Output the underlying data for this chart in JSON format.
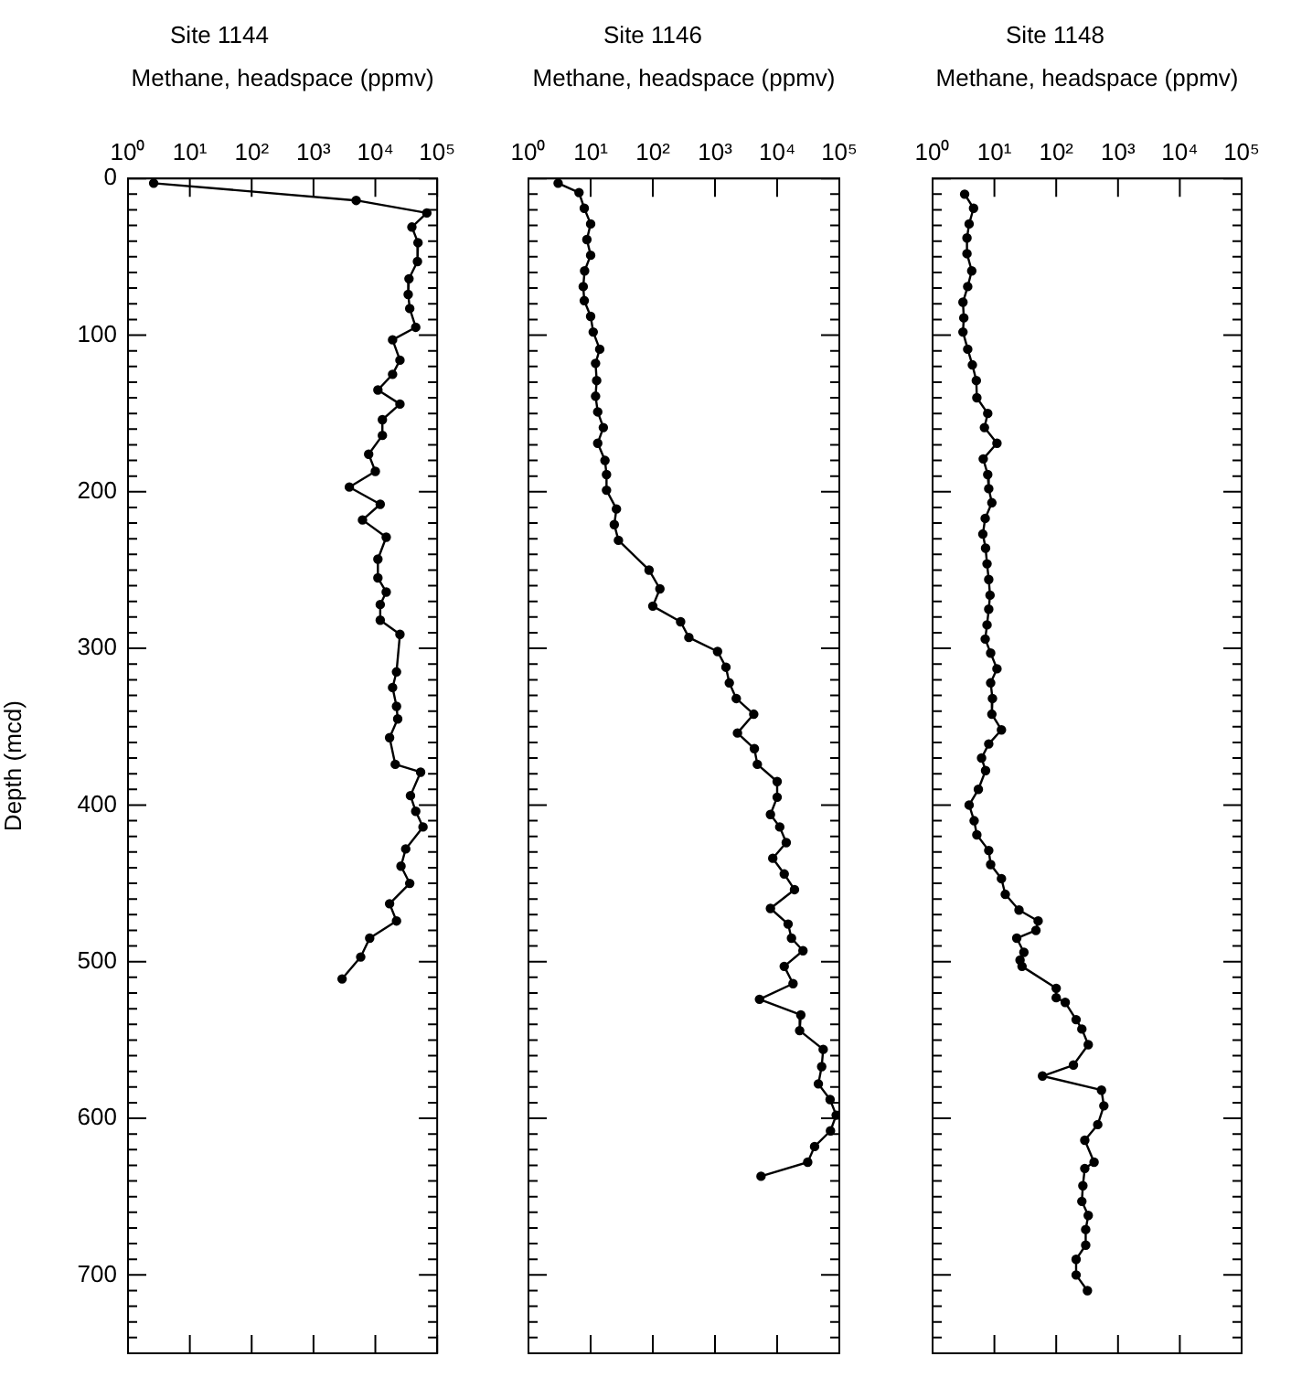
{
  "chart_data": [
    {
      "type": "line",
      "title": "Site 1144",
      "xlabel": "Methane, headspace (ppmv)",
      "ylabel": "Depth (mcd)",
      "log": "x",
      "grid": false,
      "legend": false,
      "marker": "circle",
      "xlim": [
        1,
        100000
      ],
      "xticks": [
        {
          "value": 1,
          "label": "10⁰"
        },
        {
          "value": 10,
          "label": "10¹"
        },
        {
          "value": 100,
          "label": "10²"
        },
        {
          "value": 1000,
          "label": "10³"
        },
        {
          "value": 10000,
          "label": "10⁴"
        },
        {
          "value": 100000,
          "label": "10⁵"
        }
      ],
      "ylim": [
        750,
        0
      ],
      "yticks": [
        0,
        {
          "value": 10,
          "label": null
        },
        {
          "value": 20,
          "label": null
        },
        {
          "value": 30,
          "label": null
        },
        {
          "value": 40,
          "label": null
        },
        {
          "value": 50,
          "label": null
        },
        {
          "value": 60,
          "label": null
        },
        {
          "value": 70,
          "label": null
        },
        {
          "value": 80,
          "label": null
        },
        {
          "value": 90,
          "label": null
        },
        100,
        {
          "value": 110,
          "label": null
        },
        {
          "value": 120,
          "label": null
        },
        {
          "value": 130,
          "label": null
        },
        {
          "value": 140,
          "label": null
        },
        {
          "value": 150,
          "label": null
        },
        {
          "value": 160,
          "label": null
        },
        {
          "value": 170,
          "label": null
        },
        {
          "value": 180,
          "label": null
        },
        {
          "value": 190,
          "label": null
        },
        200,
        {
          "value": 210,
          "label": null
        },
        {
          "value": 220,
          "label": null
        },
        {
          "value": 230,
          "label": null
        },
        {
          "value": 240,
          "label": null
        },
        {
          "value": 250,
          "label": null
        },
        {
          "value": 260,
          "label": null
        },
        {
          "value": 270,
          "label": null
        },
        {
          "value": 280,
          "label": null
        },
        {
          "value": 290,
          "label": null
        },
        300,
        {
          "value": 310,
          "label": null
        },
        {
          "value": 320,
          "label": null
        },
        {
          "value": 330,
          "label": null
        },
        {
          "value": 340,
          "label": null
        },
        {
          "value": 350,
          "label": null
        },
        {
          "value": 360,
          "label": null
        },
        {
          "value": 370,
          "label": null
        },
        {
          "value": 380,
          "label": null
        },
        {
          "value": 390,
          "label": null
        },
        400,
        {
          "value": 410,
          "label": null
        },
        {
          "value": 420,
          "label": null
        },
        {
          "value": 430,
          "label": null
        },
        {
          "value": 440,
          "label": null
        },
        {
          "value": 450,
          "label": null
        },
        {
          "value": 460,
          "label": null
        },
        {
          "value": 470,
          "label": null
        },
        {
          "value": 480,
          "label": null
        },
        {
          "value": 490,
          "label": null
        },
        500,
        {
          "value": 510,
          "label": null
        },
        {
          "value": 520,
          "label": null
        },
        {
          "value": 530,
          "label": null
        },
        {
          "value": 540,
          "label": null
        },
        {
          "value": 550,
          "label": null
        },
        {
          "value": 560,
          "label": null
        },
        {
          "value": 570,
          "label": null
        },
        {
          "value": 580,
          "label": null
        },
        {
          "value": 590,
          "label": null
        },
        600,
        {
          "value": 610,
          "label": null
        },
        {
          "value": 620,
          "label": null
        },
        {
          "value": 630,
          "label": null
        },
        {
          "value": 640,
          "label": null
        },
        {
          "value": 650,
          "label": null
        },
        {
          "value": 660,
          "label": null
        },
        {
          "value": 670,
          "label": null
        },
        {
          "value": 680,
          "label": null
        },
        {
          "value": 690,
          "label": null
        },
        700,
        {
          "value": 710,
          "label": null
        },
        {
          "value": 720,
          "label": null
        },
        {
          "value": 730,
          "label": null
        },
        {
          "value": 740,
          "label": null
        },
        {
          "value": 750,
          "label": null
        }
      ],
      "series": [
        {
          "color": "#000000",
          "x": [
            2.6,
            4900,
            68000,
            39000,
            49000,
            48000,
            35000,
            34000,
            36000,
            45000,
            19000,
            25000,
            19000,
            11000,
            25000,
            13000,
            13000,
            7800,
            10000,
            3800,
            12000,
            6200,
            15000,
            11000,
            11000,
            15000,
            12000,
            12000,
            25000,
            22000,
            19000,
            22000,
            23000,
            17000,
            21000,
            54000,
            37000,
            45000,
            59000,
            31000,
            26000,
            36000,
            17000,
            22000,
            8100,
            5800,
            2900
          ],
          "values": [
            3,
            14,
            22,
            31,
            41,
            53,
            64,
            74,
            83,
            95,
            103,
            116,
            125,
            135,
            144,
            154,
            164,
            176,
            187,
            197,
            208,
            218,
            229,
            243,
            255,
            264,
            272,
            282,
            291,
            315,
            325,
            337,
            345,
            357,
            374,
            379,
            394,
            404,
            414,
            428,
            439,
            450,
            463,
            474,
            485,
            497,
            511
          ]
        }
      ]
    },
    {
      "type": "line",
      "title": "Site 1146",
      "xlabel": "Methane, headspace (ppmv)",
      "log": "x",
      "grid": false,
      "legend": false,
      "marker": "circle",
      "tick_labels": "x",
      "xlim": [
        1,
        100000
      ],
      "xticks": [
        {
          "value": 1,
          "label": "10⁰"
        },
        {
          "value": 10,
          "label": "10¹"
        },
        {
          "value": 100,
          "label": "10²"
        },
        {
          "value": 1000,
          "label": "10³"
        },
        {
          "value": 10000,
          "label": "10⁴"
        },
        {
          "value": 100000,
          "label": "10⁵"
        }
      ],
      "ylim": [
        750,
        0
      ],
      "yticks": [
        0,
        {
          "value": 10,
          "label": null
        },
        {
          "value": 20,
          "label": null
        },
        {
          "value": 30,
          "label": null
        },
        {
          "value": 40,
          "label": null
        },
        {
          "value": 50,
          "label": null
        },
        {
          "value": 60,
          "label": null
        },
        {
          "value": 70,
          "label": null
        },
        {
          "value": 80,
          "label": null
        },
        {
          "value": 90,
          "label": null
        },
        100,
        {
          "value": 110,
          "label": null
        },
        {
          "value": 120,
          "label": null
        },
        {
          "value": 130,
          "label": null
        },
        {
          "value": 140,
          "label": null
        },
        {
          "value": 150,
          "label": null
        },
        {
          "value": 160,
          "label": null
        },
        {
          "value": 170,
          "label": null
        },
        {
          "value": 180,
          "label": null
        },
        {
          "value": 190,
          "label": null
        },
        200,
        {
          "value": 210,
          "label": null
        },
        {
          "value": 220,
          "label": null
        },
        {
          "value": 230,
          "label": null
        },
        {
          "value": 240,
          "label": null
        },
        {
          "value": 250,
          "label": null
        },
        {
          "value": 260,
          "label": null
        },
        {
          "value": 270,
          "label": null
        },
        {
          "value": 280,
          "label": null
        },
        {
          "value": 290,
          "label": null
        },
        300,
        {
          "value": 310,
          "label": null
        },
        {
          "value": 320,
          "label": null
        },
        {
          "value": 330,
          "label": null
        },
        {
          "value": 340,
          "label": null
        },
        {
          "value": 350,
          "label": null
        },
        {
          "value": 360,
          "label": null
        },
        {
          "value": 370,
          "label": null
        },
        {
          "value": 380,
          "label": null
        },
        {
          "value": 390,
          "label": null
        },
        400,
        {
          "value": 410,
          "label": null
        },
        {
          "value": 420,
          "label": null
        },
        {
          "value": 430,
          "label": null
        },
        {
          "value": 440,
          "label": null
        },
        {
          "value": 450,
          "label": null
        },
        {
          "value": 460,
          "label": null
        },
        {
          "value": 470,
          "label": null
        },
        {
          "value": 480,
          "label": null
        },
        {
          "value": 490,
          "label": null
        },
        500,
        {
          "value": 510,
          "label": null
        },
        {
          "value": 520,
          "label": null
        },
        {
          "value": 530,
          "label": null
        },
        {
          "value": 540,
          "label": null
        },
        {
          "value": 550,
          "label": null
        },
        {
          "value": 560,
          "label": null
        },
        {
          "value": 570,
          "label": null
        },
        {
          "value": 580,
          "label": null
        },
        {
          "value": 590,
          "label": null
        },
        600,
        {
          "value": 610,
          "label": null
        },
        {
          "value": 620,
          "label": null
        },
        {
          "value": 630,
          "label": null
        },
        {
          "value": 640,
          "label": null
        },
        {
          "value": 650,
          "label": null
        },
        {
          "value": 660,
          "label": null
        },
        {
          "value": 670,
          "label": null
        },
        {
          "value": 680,
          "label": null
        },
        {
          "value": 690,
          "label": null
        },
        700,
        {
          "value": 710,
          "label": null
        },
        {
          "value": 720,
          "label": null
        },
        {
          "value": 730,
          "label": null
        },
        {
          "value": 740,
          "label": null
        },
        {
          "value": 750,
          "label": null
        }
      ],
      "series": [
        {
          "color": "#000000",
          "x": [
            3.0,
            6.5,
            7.9,
            10,
            8.7,
            10,
            8.0,
            7.6,
            7.9,
            10,
            11,
            14,
            12,
            12.5,
            12,
            13,
            16,
            13,
            17,
            18,
            18,
            26,
            24,
            28,
            87,
            130,
            100,
            280,
            380,
            1100,
            1500,
            1700,
            2200,
            4200,
            2300,
            4300,
            4800,
            10000,
            10000,
            7800,
            11000,
            14000,
            8500,
            13000,
            19000,
            7800,
            15000,
            17000,
            26000,
            13000,
            18000,
            5200,
            24000,
            23000,
            55000,
            52000,
            46000,
            71000,
            89000,
            72000,
            40000,
            31000,
            5500
          ],
          "values": [
            3,
            9,
            19,
            29,
            39,
            49,
            59,
            69,
            78,
            88,
            98,
            109,
            118,
            129,
            139,
            149,
            159,
            169,
            180,
            189,
            199,
            211,
            221,
            231,
            250,
            262,
            273,
            283,
            293,
            302,
            312,
            322,
            332,
            342,
            354,
            364,
            374,
            385,
            395,
            406,
            414,
            424,
            434,
            444,
            454,
            466,
            476,
            485,
            493,
            503,
            514,
            524,
            534,
            544,
            556,
            567,
            578,
            588,
            598,
            608,
            618,
            628,
            637
          ]
        }
      ]
    },
    {
      "type": "line",
      "title": "Site 1148",
      "xlabel": "Methane, headspace (ppmv)",
      "log": "x",
      "grid": false,
      "legend": false,
      "marker": "circle",
      "tick_labels": "x",
      "xlim": [
        1,
        100000
      ],
      "xticks": [
        {
          "value": 1,
          "label": "10⁰"
        },
        {
          "value": 10,
          "label": "10¹"
        },
        {
          "value": 100,
          "label": "10²"
        },
        {
          "value": 1000,
          "label": "10³"
        },
        {
          "value": 10000,
          "label": "10⁴"
        },
        {
          "value": 100000,
          "label": "10⁵"
        }
      ],
      "ylim": [
        750,
        0
      ],
      "yticks": [
        0,
        {
          "value": 10,
          "label": null
        },
        {
          "value": 20,
          "label": null
        },
        {
          "value": 30,
          "label": null
        },
        {
          "value": 40,
          "label": null
        },
        {
          "value": 50,
          "label": null
        },
        {
          "value": 60,
          "label": null
        },
        {
          "value": 70,
          "label": null
        },
        {
          "value": 80,
          "label": null
        },
        {
          "value": 90,
          "label": null
        },
        100,
        {
          "value": 110,
          "label": null
        },
        {
          "value": 120,
          "label": null
        },
        {
          "value": 130,
          "label": null
        },
        {
          "value": 140,
          "label": null
        },
        {
          "value": 150,
          "label": null
        },
        {
          "value": 160,
          "label": null
        },
        {
          "value": 170,
          "label": null
        },
        {
          "value": 180,
          "label": null
        },
        {
          "value": 190,
          "label": null
        },
        200,
        {
          "value": 210,
          "label": null
        },
        {
          "value": 220,
          "label": null
        },
        {
          "value": 230,
          "label": null
        },
        {
          "value": 240,
          "label": null
        },
        {
          "value": 250,
          "label": null
        },
        {
          "value": 260,
          "label": null
        },
        {
          "value": 270,
          "label": null
        },
        {
          "value": 280,
          "label": null
        },
        {
          "value": 290,
          "label": null
        },
        300,
        {
          "value": 310,
          "label": null
        },
        {
          "value": 320,
          "label": null
        },
        {
          "value": 330,
          "label": null
        },
        {
          "value": 340,
          "label": null
        },
        {
          "value": 350,
          "label": null
        },
        {
          "value": 360,
          "label": null
        },
        {
          "value": 370,
          "label": null
        },
        {
          "value": 380,
          "label": null
        },
        {
          "value": 390,
          "label": null
        },
        400,
        {
          "value": 410,
          "label": null
        },
        {
          "value": 420,
          "label": null
        },
        {
          "value": 430,
          "label": null
        },
        {
          "value": 440,
          "label": null
        },
        {
          "value": 450,
          "label": null
        },
        {
          "value": 460,
          "label": null
        },
        {
          "value": 470,
          "label": null
        },
        {
          "value": 480,
          "label": null
        },
        {
          "value": 490,
          "label": null
        },
        500,
        {
          "value": 510,
          "label": null
        },
        {
          "value": 520,
          "label": null
        },
        {
          "value": 530,
          "label": null
        },
        {
          "value": 540,
          "label": null
        },
        {
          "value": 550,
          "label": null
        },
        {
          "value": 560,
          "label": null
        },
        {
          "value": 570,
          "label": null
        },
        {
          "value": 580,
          "label": null
        },
        {
          "value": 590,
          "label": null
        },
        600,
        {
          "value": 610,
          "label": null
        },
        {
          "value": 620,
          "label": null
        },
        {
          "value": 630,
          "label": null
        },
        {
          "value": 640,
          "label": null
        },
        {
          "value": 650,
          "label": null
        },
        {
          "value": 660,
          "label": null
        },
        {
          "value": 670,
          "label": null
        },
        {
          "value": 680,
          "label": null
        },
        {
          "value": 690,
          "label": null
        },
        700,
        {
          "value": 710,
          "label": null
        },
        {
          "value": 720,
          "label": null
        },
        {
          "value": 730,
          "label": null
        },
        {
          "value": 740,
          "label": null
        },
        {
          "value": 750,
          "label": null
        }
      ],
      "series": [
        {
          "color": "#000000",
          "x": [
            3.3,
            4.6,
            3.9,
            3.6,
            3.6,
            4.3,
            3.7,
            3.1,
            3.2,
            3.1,
            3.7,
            4.4,
            5.1,
            5.2,
            7.8,
            6.9,
            11,
            6.6,
            7.8,
            8.1,
            9.1,
            7.1,
            6.5,
            7.2,
            7.6,
            8.1,
            8.5,
            8.1,
            7.6,
            7.1,
            8.7,
            11,
            8.7,
            9.3,
            9.1,
            13,
            8.1,
            6.2,
            7.2,
            5.5,
            3.9,
            4.7,
            5.2,
            8.1,
            8.7,
            13,
            15,
            25,
            51,
            47,
            23,
            30,
            26,
            28,
            100,
            100,
            140,
            210,
            260,
            330,
            190,
            60,
            540,
            590,
            470,
            290,
            410,
            290,
            270,
            260,
            330,
            300,
            300,
            210,
            210,
            320
          ],
          "values": [
            10,
            19,
            29,
            38,
            48,
            59,
            69,
            79,
            89,
            98,
            109,
            119,
            129,
            140,
            150,
            159,
            169,
            179,
            189,
            198,
            207,
            217,
            227,
            236,
            246,
            256,
            266,
            275,
            285,
            294,
            303,
            313,
            322,
            332,
            342,
            352,
            361,
            370,
            378,
            390,
            400,
            410,
            419,
            429,
            438,
            447,
            457,
            467,
            474,
            480,
            485,
            494,
            499,
            503,
            517,
            523,
            526,
            537,
            543,
            553,
            566,
            573,
            582,
            592,
            604,
            614,
            628,
            632,
            643,
            653,
            662,
            671,
            681,
            690,
            700,
            710
          ]
        }
      ]
    }
  ]
}
